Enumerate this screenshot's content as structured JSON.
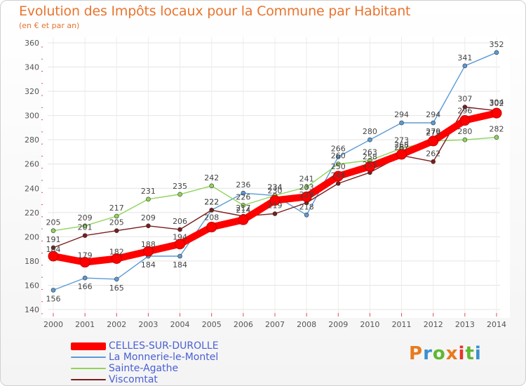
{
  "header": {
    "title": "Evolution des Impôts locaux pour la Commune par Habitant",
    "subtitle": "(en € et par an)"
  },
  "brand": {
    "logo_text": "Proxiti",
    "colors": [
      "#e87a1e",
      "#3a8fd0",
      "#5fb832",
      "#e87a1e",
      "#e5352b",
      "#5fb832",
      "#3a8fd0"
    ]
  },
  "chart_data": {
    "type": "line",
    "title": "Evolution des Impôts locaux pour la Commune par Habitant",
    "subtitle": "(en € et par an)",
    "xlabel": "",
    "ylabel": "",
    "ylim": [
      140,
      360
    ],
    "yticks": [
      140,
      160,
      180,
      200,
      220,
      240,
      260,
      280,
      300,
      320,
      340,
      360
    ],
    "grid": true,
    "legend_position": "bottom-left",
    "categories": [
      "2000",
      "2001",
      "2002",
      "2003",
      "2004",
      "2005",
      "2006",
      "2007",
      "2008",
      "2009",
      "2010",
      "2011",
      "2012",
      "2013",
      "2014"
    ],
    "series": [
      {
        "name": "La Monnerie-le-Montel",
        "color": "#5b9bd5",
        "values": [
          156,
          166,
          165,
          184,
          184,
          222,
          236,
          234,
          218,
          266,
          280,
          294,
          294,
          341,
          352
        ]
      },
      {
        "name": "Sainte-Agathe",
        "color": "#8fd45a",
        "values": [
          205,
          209,
          217,
          231,
          235,
          242,
          226,
          234,
          241,
          260,
          263,
          273,
          279,
          280,
          282
        ]
      },
      {
        "name": "Viscomtat",
        "color": "#7b1c1c",
        "values": [
          191,
          201,
          205,
          209,
          206,
          222,
          217,
          219,
          228,
          244,
          253,
          267,
          262,
          307,
          304
        ]
      },
      {
        "name": "CELLES-SUR-DUROLLE",
        "color": "#ff0000",
        "values": [
          184,
          179,
          182,
          188,
          194,
          208,
          214,
          230,
          233,
          250,
          258,
          268,
          279,
          296,
          302
        ]
      }
    ],
    "legend": [
      {
        "name": "CELLES-SUR-DUROLLE",
        "color": "#ff0000"
      },
      {
        "name": "La Monnerie-le-Montel",
        "color": "#5b9bd5"
      },
      {
        "name": "Sainte-Agathe",
        "color": "#8fd45a"
      },
      {
        "name": "Viscomtat",
        "color": "#7b1c1c"
      }
    ]
  }
}
